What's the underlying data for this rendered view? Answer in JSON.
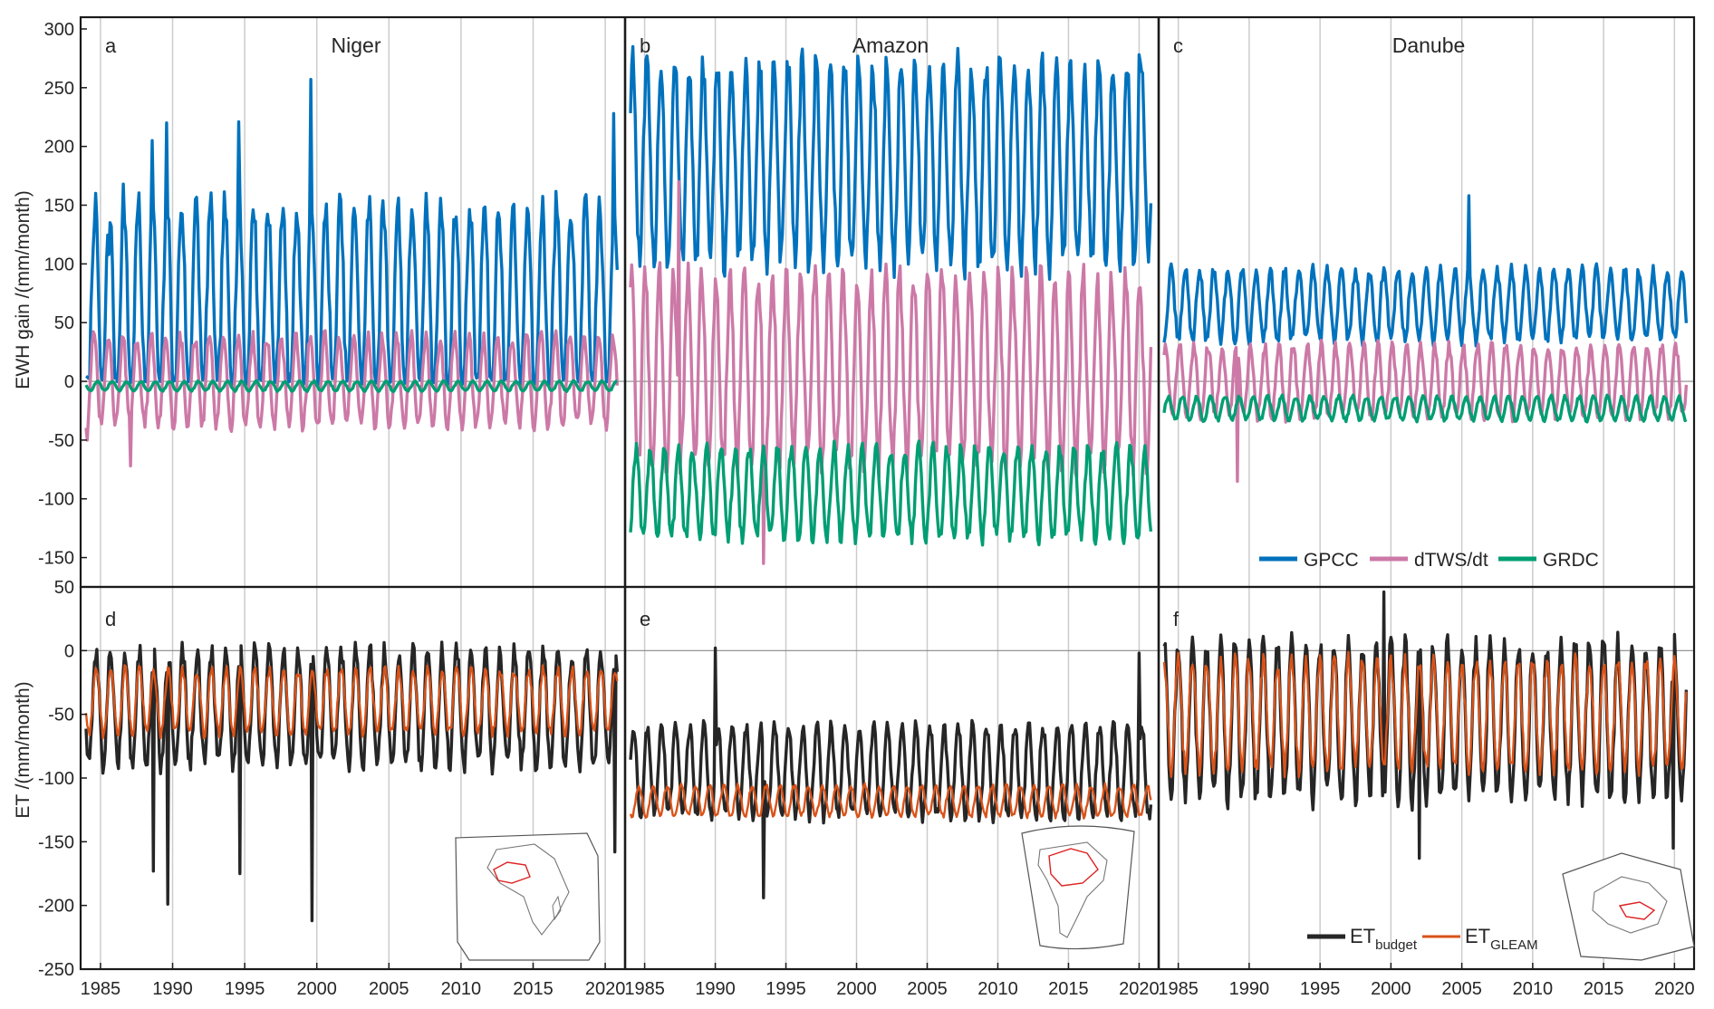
{
  "colors": {
    "gpcc": "#0072BD",
    "dtws": "#CC79A7",
    "grdc": "#009E73",
    "et_budget": "#262626",
    "et_gleam": "#D95319",
    "gridline": "#cccccc",
    "zeroline": "#888888"
  },
  "axes": {
    "top_ylabel": "EWH gain  /(mm/month)",
    "bottom_ylabel": "ET  /(mm/month)",
    "top_yticks": [
      300,
      250,
      200,
      150,
      100,
      50,
      0,
      -50,
      -100,
      -150
    ],
    "bottom_yticks": [
      50,
      0,
      -50,
      -100,
      -150,
      -200,
      -250
    ],
    "xticks": [
      1985,
      1990,
      1995,
      2000,
      2005,
      2010,
      2015,
      2020
    ]
  },
  "legend_top": {
    "gpcc": "GPCC",
    "dtws": "dTWS/dt",
    "grdc": "GRDC"
  },
  "legend_bottom": {
    "budget_main": "ET",
    "budget_sub": "budget",
    "gleam_main": "ET",
    "gleam_sub": "GLEAM"
  },
  "chart_data": [
    {
      "type": "line",
      "panel": "a",
      "title": "Niger",
      "xlim": [
        1984,
        2021
      ],
      "ylim": [
        -175,
        310
      ],
      "grid": "vertical",
      "series": [
        {
          "name": "GPCC",
          "color": "#0072BD",
          "phase": 0.62,
          "seasonal": {
            "mean": 70,
            "amplitude": 80,
            "min": 0
          },
          "peaks": [
            {
              "x": 1985.6,
              "y": 108
            },
            {
              "x": 1986.6,
              "y": 168
            },
            {
              "x": 1987.6,
              "y": 145
            },
            {
              "x": 1988.6,
              "y": 205
            },
            {
              "x": 1989.6,
              "y": 220
            },
            {
              "x": 1994.6,
              "y": 221
            },
            {
              "x": 1999.6,
              "y": 257
            },
            {
              "x": 2020.6,
              "y": 228
            }
          ]
        },
        {
          "name": "dTWS/dt",
          "color": "#CC79A7",
          "phase": 0.55,
          "seasonal": {
            "mean": 0,
            "amplitude": 38,
            "min": -40
          },
          "troughs": [
            {
              "x": 1984.1,
              "y": -50
            },
            {
              "x": 1987.1,
              "y": -72
            }
          ]
        },
        {
          "name": "GRDC",
          "color": "#009E73",
          "phase": 0.8,
          "seasonal": {
            "mean": -4,
            "amplitude": 4
          }
        }
      ]
    },
    {
      "type": "line",
      "panel": "b",
      "title": "Amazon",
      "xlim": [
        1984,
        2021
      ],
      "ylim": [
        -175,
        310
      ],
      "grid": "vertical",
      "series": [
        {
          "name": "GPCC",
          "color": "#0072BD",
          "phase": 0.15,
          "seasonal": {
            "mean": 185,
            "amplitude": 85
          },
          "peaks": [
            {
              "x": 1984.2,
              "y": 285
            },
            {
              "x": 2020.0,
              "y": 278
            }
          ]
        },
        {
          "name": "dTWS/dt",
          "color": "#CC79A7",
          "phase": 0.05,
          "seasonal": {
            "mean": 10,
            "amplitude": 80
          },
          "peaks": [
            {
              "x": 1987.4,
              "y": 170
            }
          ],
          "troughs": [
            {
              "x": 1993.4,
              "y": -155
            }
          ]
        },
        {
          "name": "GRDC",
          "color": "#009E73",
          "phase": 0.4,
          "seasonal": {
            "mean": -95,
            "amplitude": 38
          }
        }
      ]
    },
    {
      "type": "line",
      "panel": "c",
      "title": "Danube",
      "xlim": [
        1984,
        2021
      ],
      "ylim": [
        -175,
        310
      ],
      "grid": "vertical",
      "series": [
        {
          "name": "GPCC",
          "color": "#0072BD",
          "phase": 0.5,
          "seasonal": {
            "mean": 65,
            "amplitude": 30
          },
          "peaks": [
            {
              "x": 2005.5,
              "y": 158
            }
          ]
        },
        {
          "name": "dTWS/dt",
          "color": "#CC79A7",
          "phase": 0.1,
          "seasonal": {
            "mean": 0,
            "amplitude": 30
          },
          "troughs": [
            {
              "x": 1989.2,
              "y": -85
            }
          ]
        },
        {
          "name": "GRDC",
          "color": "#009E73",
          "phase": 0.3,
          "seasonal": {
            "mean": -23,
            "amplitude": 10
          }
        }
      ]
    },
    {
      "type": "line",
      "panel": "d",
      "title": "",
      "xlim": [
        1984,
        2021
      ],
      "ylim": [
        -250,
        50
      ],
      "grid": "vertical",
      "series": [
        {
          "name": "ET budget",
          "color": "#262626",
          "phase": 0.7,
          "seasonal": {
            "mean": -45,
            "amplitude": 45
          },
          "troughs": [
            {
              "x": 1988.7,
              "y": -173
            },
            {
              "x": 1989.7,
              "y": -199
            },
            {
              "x": 1994.7,
              "y": -175
            },
            {
              "x": 1999.7,
              "y": -212
            },
            {
              "x": 2020.7,
              "y": -158
            }
          ]
        },
        {
          "name": "ET GLEAM",
          "color": "#D95319",
          "phase": 0.7,
          "seasonal": {
            "mean": -40,
            "amplitude": 25
          }
        }
      ]
    },
    {
      "type": "line",
      "panel": "e",
      "title": "",
      "xlim": [
        1984,
        2021
      ],
      "ylim": [
        -250,
        50
      ],
      "grid": "vertical",
      "series": [
        {
          "name": "ET budget",
          "color": "#262626",
          "phase": 0.2,
          "seasonal": {
            "mean": -95,
            "amplitude": 35
          },
          "peaks": [
            {
              "x": 1990.0,
              "y": 2
            },
            {
              "x": 2020.0,
              "y": -2
            }
          ],
          "troughs": [
            {
              "x": 1993.4,
              "y": -194
            }
          ]
        },
        {
          "name": "ET GLEAM",
          "color": "#D95319",
          "phase": 0.6,
          "seasonal": {
            "mean": -118,
            "amplitude": 12
          }
        }
      ]
    },
    {
      "type": "line",
      "panel": "f",
      "title": "",
      "xlim": [
        1984,
        2021
      ],
      "ylim": [
        -250,
        50
      ],
      "grid": "vertical",
      "series": [
        {
          "name": "ET budget",
          "color": "#262626",
          "phase": 0.0,
          "seasonal": {
            "mean": -55,
            "amplitude": 60
          },
          "peaks": [
            {
              "x": 1999.5,
              "y": 46
            }
          ],
          "troughs": [
            {
              "x": 2002.0,
              "y": -163
            },
            {
              "x": 2019.9,
              "y": -155
            }
          ]
        },
        {
          "name": "ET GLEAM",
          "color": "#D95319",
          "phase": 0.0,
          "seasonal": {
            "mean": -50,
            "amplitude": 42
          }
        }
      ]
    }
  ]
}
